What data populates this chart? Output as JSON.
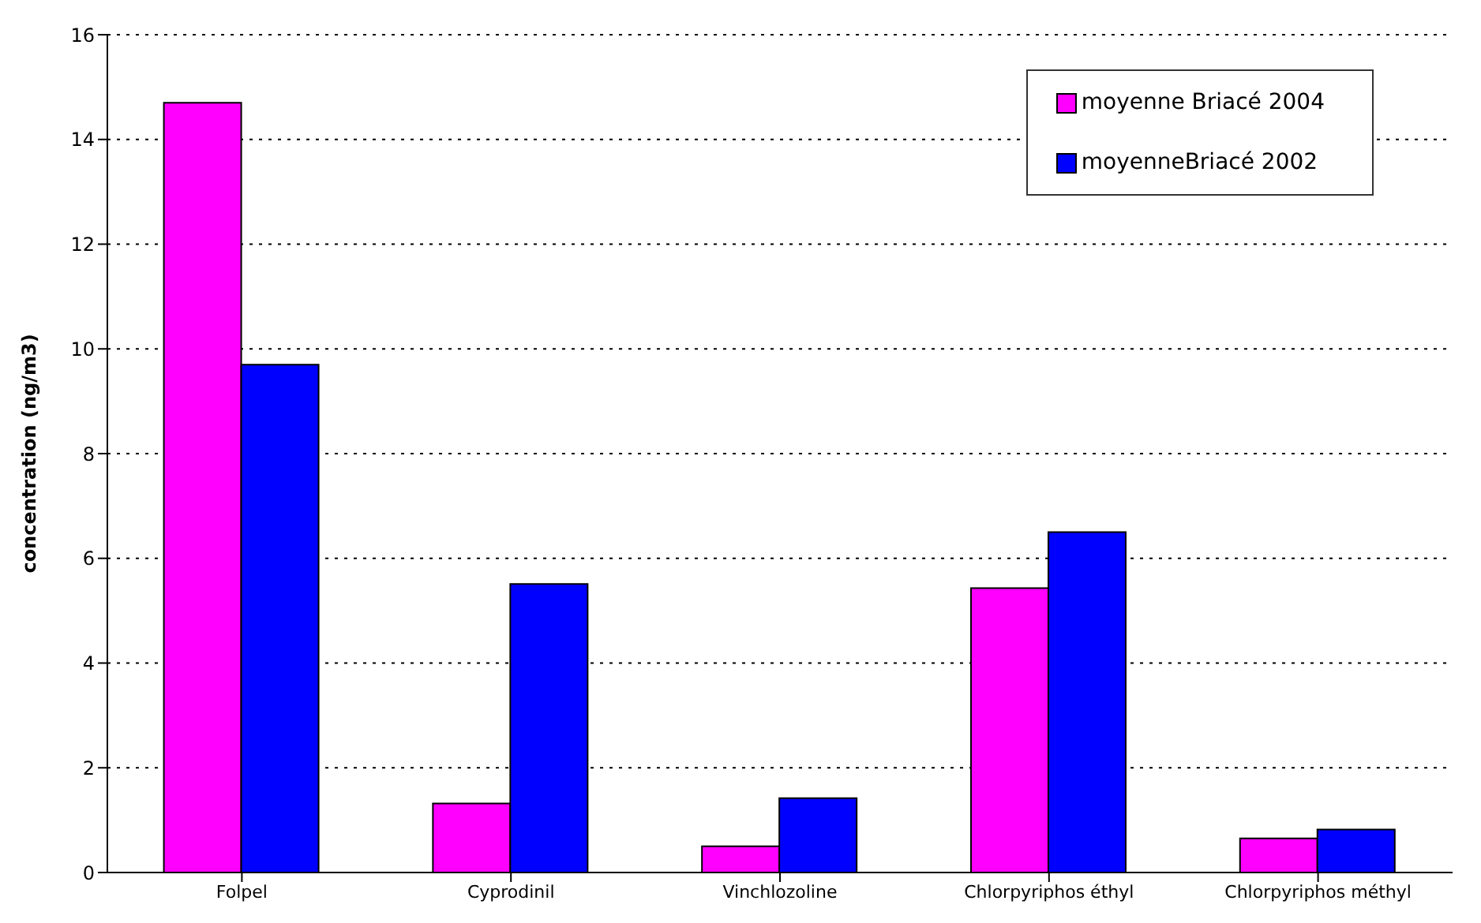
{
  "chart_data": {
    "type": "bar",
    "ylabel": "concentration (ng/m3)",
    "categories": [
      "Folpel",
      "Cyprodinil",
      "Vinchlozoline",
      "Chlorpyriphos éthyl",
      "Chlorpyriphos méthyl"
    ],
    "series": [
      {
        "name": "moyenne Briacé 2004",
        "color": "#ff00ff",
        "values": [
          14.7,
          1.32,
          0.5,
          5.43,
          0.65
        ]
      },
      {
        "name": "moyenneBriacé 2002",
        "color": "#0000ff",
        "values": [
          9.7,
          5.51,
          1.42,
          6.5,
          0.82
        ]
      }
    ],
    "ylim": [
      0,
      16
    ],
    "yticks": [
      0,
      2,
      4,
      6,
      8,
      10,
      12,
      14,
      16
    ],
    "grid": "y",
    "legend": "top right"
  }
}
